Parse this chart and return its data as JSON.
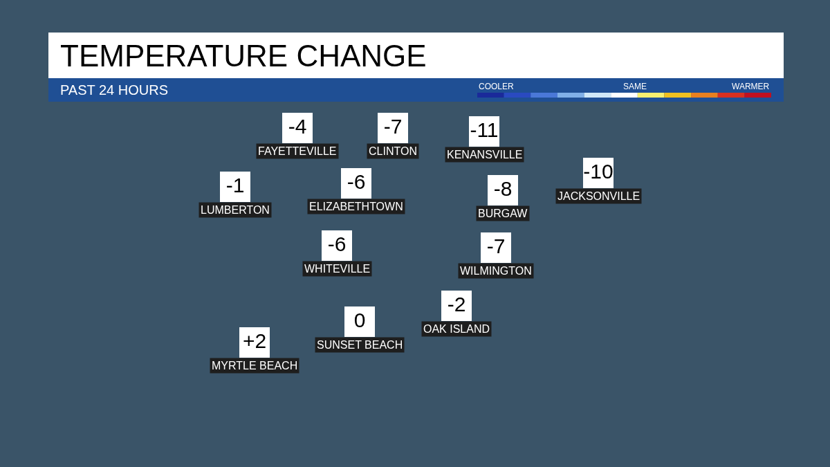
{
  "chart_data": {
    "type": "other",
    "title": "TEMPERATURE CHANGE",
    "subtitle": "PAST 24 HOURS",
    "categories": [
      "FAYETTEVILLE",
      "CLINTON",
      "KENANSVILLE",
      "LUMBERTON",
      "ELIZABETHTOWN",
      "BURGAW",
      "JACKSONVILLE",
      "WHITEVILLE",
      "WILMINGTON",
      "SUNSET BEACH",
      "OAK ISLAND",
      "MYRTLE BEACH"
    ],
    "values": [
      -4,
      -7,
      -11,
      -1,
      -6,
      -8,
      -10,
      -6,
      -7,
      0,
      -2,
      2
    ],
    "value_labels": [
      "-4",
      "-7",
      "-11",
      "-1",
      "-6",
      "-8",
      "-10",
      "-6",
      "-7",
      "0",
      "-2",
      "+2"
    ],
    "annotations": [
      "COOLER",
      "SAME",
      "WARMER"
    ]
  }
}
